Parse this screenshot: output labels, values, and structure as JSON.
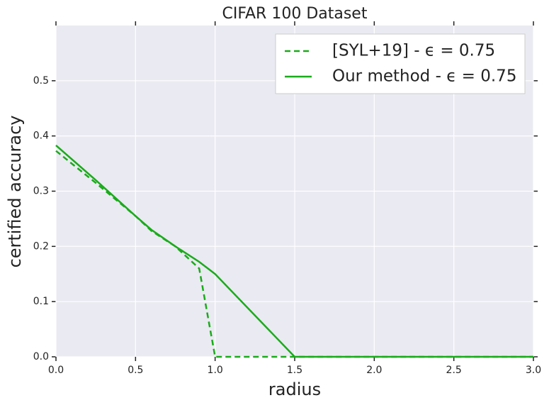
{
  "chart_data": {
    "type": "line",
    "title": "CIFAR 100 Dataset",
    "x_label": "radius",
    "y_label": "certified accuracy",
    "x": [
      0,
      0.25,
      0.5,
      0.6,
      0.75,
      0.9,
      1.0,
      1.5,
      2.0,
      2.5,
      3.0
    ],
    "series": [
      {
        "name": "[SYL+19] - ϵ = 0.75",
        "color": "#1aab1a",
        "dash": true,
        "values": [
          0.373,
          0.315,
          0.255,
          0.228,
          0.2,
          0.16,
          0.0,
          0.0,
          0.0,
          0.0,
          0.0
        ]
      },
      {
        "name": "Our method - ϵ = 0.75",
        "color": "#1aab1a",
        "dash": false,
        "values": [
          0.383,
          0.32,
          0.255,
          0.23,
          0.2,
          0.172,
          0.15,
          0.0,
          0.0,
          0.0,
          0.0
        ]
      }
    ],
    "xlim": [
      0,
      3
    ],
    "ylim": [
      0,
      0.6
    ],
    "xticks": [
      {
        "value": 0,
        "label": "0.0"
      },
      0.5,
      {
        "value": 1,
        "label": "1.0"
      },
      1.5,
      {
        "value": 2,
        "label": "2.0"
      },
      2.5,
      {
        "value": 3,
        "label": "3.0"
      }
    ],
    "yticks": [
      {
        "value": 0,
        "label": "0.0"
      },
      0.1,
      0.2,
      0.3,
      0.4,
      0.5
    ],
    "grid": true,
    "legend": "upper right"
  }
}
